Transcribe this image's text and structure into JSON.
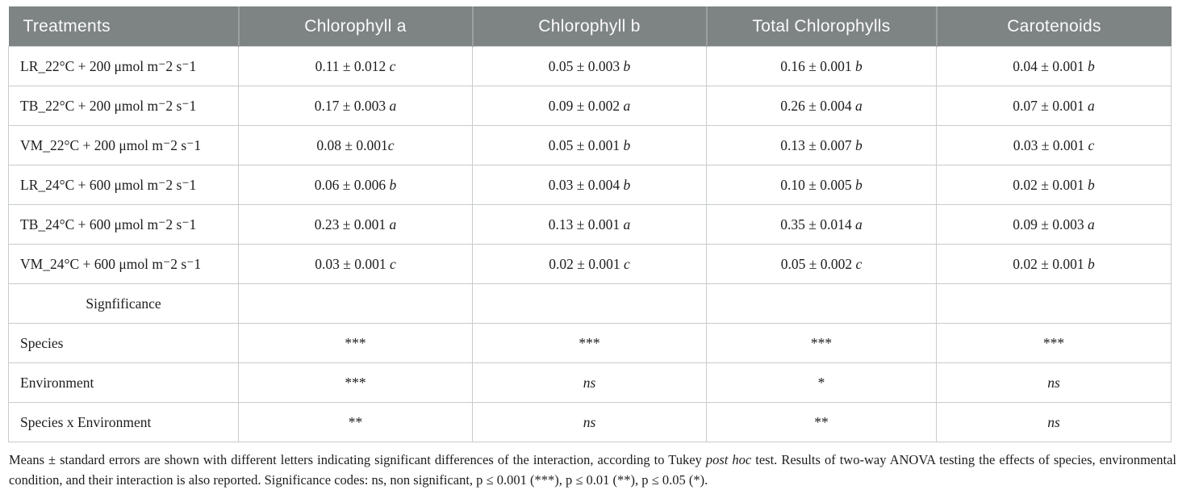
{
  "colors": {
    "header_bg": "#7e8383",
    "header_text": "#fbfbfb",
    "border": "#c8cccb",
    "body_text": "#1d1d1d"
  },
  "table": {
    "columns": [
      {
        "label": "Treatments"
      },
      {
        "label": "Chlorophyll a"
      },
      {
        "label": "Chlorophyll b"
      },
      {
        "label": "Total Chlorophylls"
      },
      {
        "label": "Carotenoids"
      }
    ],
    "rows": [
      {
        "treatment": "LR_22°C + 200 μmol m⁻2 s⁻1",
        "cells": [
          {
            "value": "0.11 ± 0.012 ",
            "letter": "c"
          },
          {
            "value": "0.05 ± 0.003 ",
            "letter": "b"
          },
          {
            "value": "0.16 ± 0.001 ",
            "letter": "b"
          },
          {
            "value": "0.04 ± 0.001 ",
            "letter": "b"
          }
        ]
      },
      {
        "treatment": "TB_22°C + 200 μmol m⁻2 s⁻1",
        "cells": [
          {
            "value": "0.17 ± 0.003 ",
            "letter": "a"
          },
          {
            "value": "0.09 ± 0.002 ",
            "letter": "a"
          },
          {
            "value": "0.26 ± 0.004 ",
            "letter": "a"
          },
          {
            "value": "0.07 ± 0.001 ",
            "letter": "a"
          }
        ]
      },
      {
        "treatment": "VM_22°C + 200 μmol m⁻2 s⁻1",
        "cells": [
          {
            "value": "0.08 ± 0.001",
            "letter": "c"
          },
          {
            "value": "0.05 ± 0.001 ",
            "letter": "b"
          },
          {
            "value": "0.13 ± 0.007 ",
            "letter": "b"
          },
          {
            "value": "0.03 ± 0.001 ",
            "letter": "c"
          }
        ]
      },
      {
        "treatment": "LR_24°C + 600 μmol m⁻2 s⁻1",
        "cells": [
          {
            "value": "0.06 ± 0.006 ",
            "letter": "b"
          },
          {
            "value": "0.03 ± 0.004 ",
            "letter": "b"
          },
          {
            "value": "0.10 ± 0.005 ",
            "letter": "b"
          },
          {
            "value": "0.02 ± 0.001 ",
            "letter": "b"
          }
        ]
      },
      {
        "treatment": "TB_24°C + 600 μmol m⁻2 s⁻1",
        "cells": [
          {
            "value": "0.23 ± 0.001 ",
            "letter": "a"
          },
          {
            "value": "0.13 ± 0.001 ",
            "letter": "a"
          },
          {
            "value": "0.35 ± 0.014 ",
            "letter": "a"
          },
          {
            "value": "0.09 ± 0.003 ",
            "letter": "a"
          }
        ]
      },
      {
        "treatment": "VM_24°C + 600 μmol m⁻2 s⁻1",
        "cells": [
          {
            "value": "0.03 ± 0.001 ",
            "letter": "c"
          },
          {
            "value": "0.02 ± 0.001 ",
            "letter": "c"
          },
          {
            "value": "0.05 ± 0.002 ",
            "letter": "c"
          },
          {
            "value": "0.02 ± 0.001 ",
            "letter": "b"
          }
        ]
      }
    ],
    "significance_header": "Signfificance",
    "anova_rows": [
      {
        "label": "Species",
        "cells": [
          {
            "stars": "***",
            "ns": ""
          },
          {
            "stars": "***",
            "ns": ""
          },
          {
            "stars": "***",
            "ns": ""
          },
          {
            "stars": "***",
            "ns": ""
          }
        ]
      },
      {
        "label": "Environment",
        "cells": [
          {
            "stars": "***",
            "ns": ""
          },
          {
            "stars": "",
            "ns": "ns"
          },
          {
            "stars": "*",
            "ns": ""
          },
          {
            "stars": "",
            "ns": "ns"
          }
        ]
      },
      {
        "label": "Species x Environment",
        "cells": [
          {
            "stars": "**",
            "ns": ""
          },
          {
            "stars": "",
            "ns": "ns"
          },
          {
            "stars": "**",
            "ns": ""
          },
          {
            "stars": "",
            "ns": "ns"
          }
        ]
      }
    ]
  },
  "footnote": {
    "part1": "Means ± standard errors are shown with different letters indicating significant differences of the interaction, according to Tukey ",
    "italic": "post hoc",
    "part2": " test. Results of two-way ANOVA testing the effects of species, environmental condition, and their interaction is also reported. Significance codes: ns, non significant, p ≤ 0.001 (***), p ≤ 0.01 (**), p ≤ 0.05 (*)."
  }
}
